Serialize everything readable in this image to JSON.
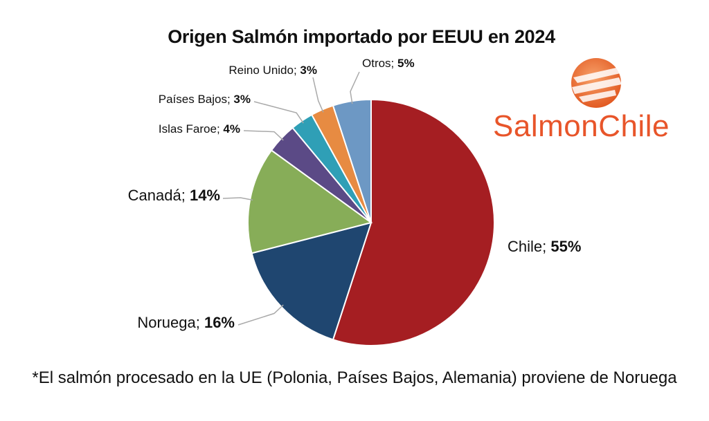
{
  "chart_data": {
    "type": "pie",
    "title": "Origen Salmón importado por EEUU en 2024",
    "slices": [
      {
        "name": "Chile",
        "value": 55,
        "label": "55%",
        "color": "#a51e22"
      },
      {
        "name": "Noruega",
        "value": 16,
        "label": "16%",
        "color": "#1f4670"
      },
      {
        "name": "Canadá",
        "value": 14,
        "label": "14%",
        "color": "#87ad58"
      },
      {
        "name": "Islas Faroe",
        "value": 4,
        "label": "4%",
        "color": "#5b4a86"
      },
      {
        "name": "Países Bajos",
        "value": 3,
        "label": "3%",
        "color": "#2f9fb6"
      },
      {
        "name": "Reino Unido",
        "value": 3,
        "label": "3%",
        "color": "#e78b42"
      },
      {
        "name": "Otros",
        "value": 5,
        "label": "5%",
        "color": "#6d98c4"
      }
    ],
    "start": "12 o'clock",
    "direction": "clockwise"
  },
  "logo": {
    "text": "SalmonChile",
    "color": "#e8552a"
  },
  "footnote": "*El salmón procesado en la UE (Polonia, Países Bajos, Alemania) proviene de Noruega"
}
